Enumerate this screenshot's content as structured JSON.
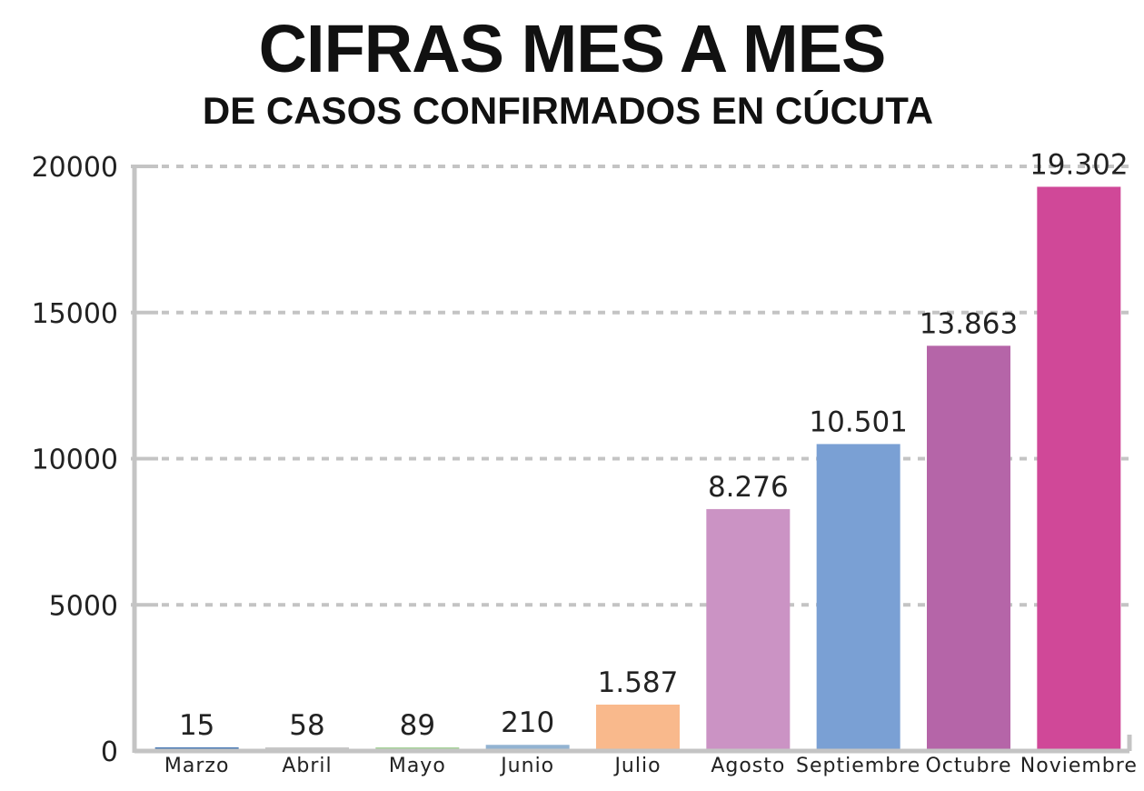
{
  "chart_data": {
    "type": "bar",
    "title": "CIFRAS MES A MES",
    "subtitle": "DE CASOS CONFIRMADOS EN CÚCUTA",
    "xlabel": "",
    "ylabel": "",
    "ylim": [
      0,
      20000
    ],
    "yticks": [
      "0",
      "5000",
      "10000",
      "15000",
      "20000"
    ],
    "grid": true,
    "categories": [
      "Marzo",
      "Abril",
      "Mayo",
      "Junio",
      "Julio",
      "Agosto",
      "Septiembre",
      "Octubre",
      "Noviembre"
    ],
    "values": [
      15,
      58,
      89,
      210,
      1587,
      8276,
      10501,
      13863,
      19302
    ],
    "data_labels": [
      "15",
      "58",
      "89",
      "210",
      "1.587",
      "8.276",
      "10.501",
      "13.863",
      "19.302"
    ],
    "colors": [
      "#4a7ab4",
      "#c8c8c8",
      "#a7d29a",
      "#93b3d2",
      "#f9b98c",
      "#cb93c4",
      "#7aa0d4",
      "#b565a8",
      "#d04898"
    ]
  }
}
